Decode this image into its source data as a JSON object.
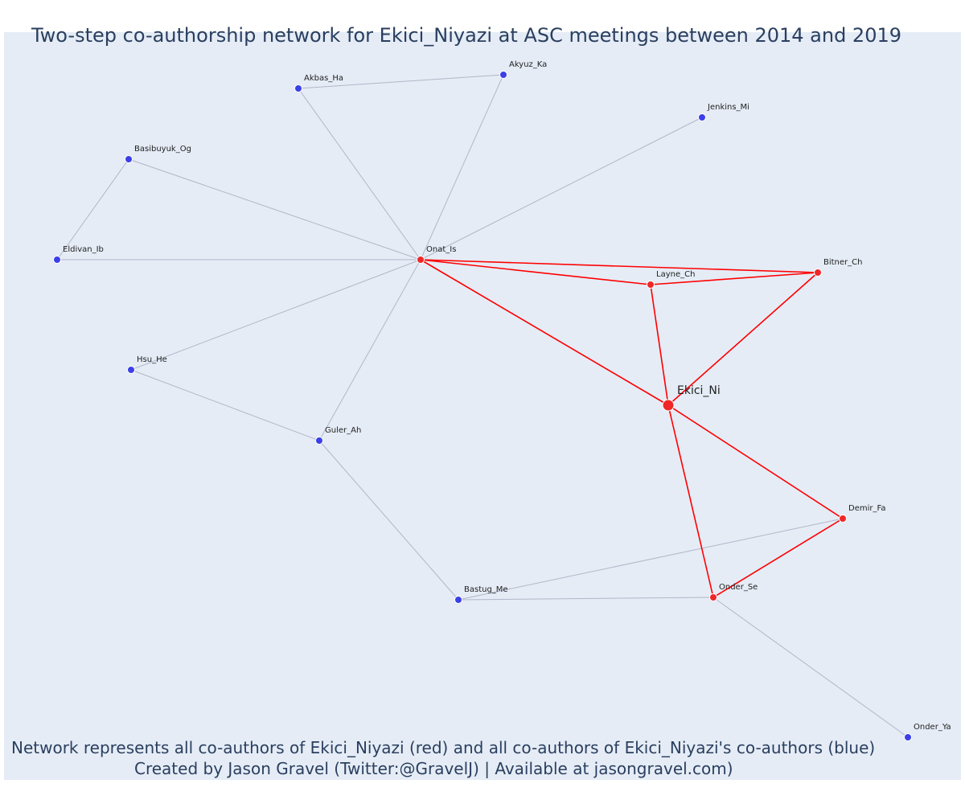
{
  "title": "Two-step co-authorship network for Ekici_Niyazi at ASC meetings between 2014 and 2019",
  "footer": {
    "line1": "Network represents all co-authors of Ekici_Niyazi (red) and all co-authors of Ekici_Niyazi's co-authors (blue)",
    "line2": "Created by Jason Gravel (Twitter:@GravelJ) | Available at jasongravel.com)"
  },
  "colors": {
    "background": "#e5ecf6",
    "coauthor": "#ef2727",
    "second_step": "#3b3fe8",
    "coauthor_edge": "#ff0000",
    "second_step_edge": "#b3b6c8",
    "text": "#2a3f5f"
  },
  "nodes": [
    {
      "id": "Ekici_Ni",
      "group": "focal"
    },
    {
      "id": "Onat_Is",
      "group": "coauthor"
    },
    {
      "id": "Layne_Ch",
      "group": "coauthor"
    },
    {
      "id": "Bitner_Ch",
      "group": "coauthor"
    },
    {
      "id": "Demir_Fa",
      "group": "coauthor"
    },
    {
      "id": "Onder_Se",
      "group": "coauthor"
    },
    {
      "id": "Akbas_Ha",
      "group": "second"
    },
    {
      "id": "Akyuz_Ka",
      "group": "second"
    },
    {
      "id": "Jenkins_Mi",
      "group": "second"
    },
    {
      "id": "Basibuyuk_Og",
      "group": "second"
    },
    {
      "id": "Eldivan_Ib",
      "group": "second"
    },
    {
      "id": "Hsu_He",
      "group": "second"
    },
    {
      "id": "Guler_Ah",
      "group": "second"
    },
    {
      "id": "Bastug_Me",
      "group": "second"
    },
    {
      "id": "Onder_Ya",
      "group": "second"
    }
  ],
  "edges": [
    {
      "source": "Ekici_Ni",
      "target": "Onat_Is",
      "type": "coauthor"
    },
    {
      "source": "Ekici_Ni",
      "target": "Layne_Ch",
      "type": "coauthor"
    },
    {
      "source": "Ekici_Ni",
      "target": "Bitner_Ch",
      "type": "coauthor"
    },
    {
      "source": "Ekici_Ni",
      "target": "Demir_Fa",
      "type": "coauthor"
    },
    {
      "source": "Ekici_Ni",
      "target": "Onder_Se",
      "type": "coauthor"
    },
    {
      "source": "Onat_Is",
      "target": "Layne_Ch",
      "type": "coauthor"
    },
    {
      "source": "Onat_Is",
      "target": "Bitner_Ch",
      "type": "coauthor"
    },
    {
      "source": "Layne_Ch",
      "target": "Bitner_Ch",
      "type": "coauthor"
    },
    {
      "source": "Demir_Fa",
      "target": "Onder_Se",
      "type": "coauthor"
    },
    {
      "source": "Onat_Is",
      "target": "Akbas_Ha",
      "type": "second"
    },
    {
      "source": "Onat_Is",
      "target": "Akyuz_Ka",
      "type": "second"
    },
    {
      "source": "Akbas_Ha",
      "target": "Akyuz_Ka",
      "type": "second"
    },
    {
      "source": "Onat_Is",
      "target": "Jenkins_Mi",
      "type": "second"
    },
    {
      "source": "Onat_Is",
      "target": "Basibuyuk_Og",
      "type": "second"
    },
    {
      "source": "Onat_Is",
      "target": "Eldivan_Ib",
      "type": "second"
    },
    {
      "source": "Basibuyuk_Og",
      "target": "Eldivan_Ib",
      "type": "second"
    },
    {
      "source": "Onat_Is",
      "target": "Hsu_He",
      "type": "second"
    },
    {
      "source": "Onat_Is",
      "target": "Guler_Ah",
      "type": "second"
    },
    {
      "source": "Hsu_He",
      "target": "Guler_Ah",
      "type": "second"
    },
    {
      "source": "Guler_Ah",
      "target": "Bastug_Me",
      "type": "second"
    },
    {
      "source": "Bastug_Me",
      "target": "Onder_Se",
      "type": "second"
    },
    {
      "source": "Bastug_Me",
      "target": "Demir_Fa",
      "type": "second"
    },
    {
      "source": "Onder_Se",
      "target": "Onder_Ya",
      "type": "second"
    }
  ]
}
